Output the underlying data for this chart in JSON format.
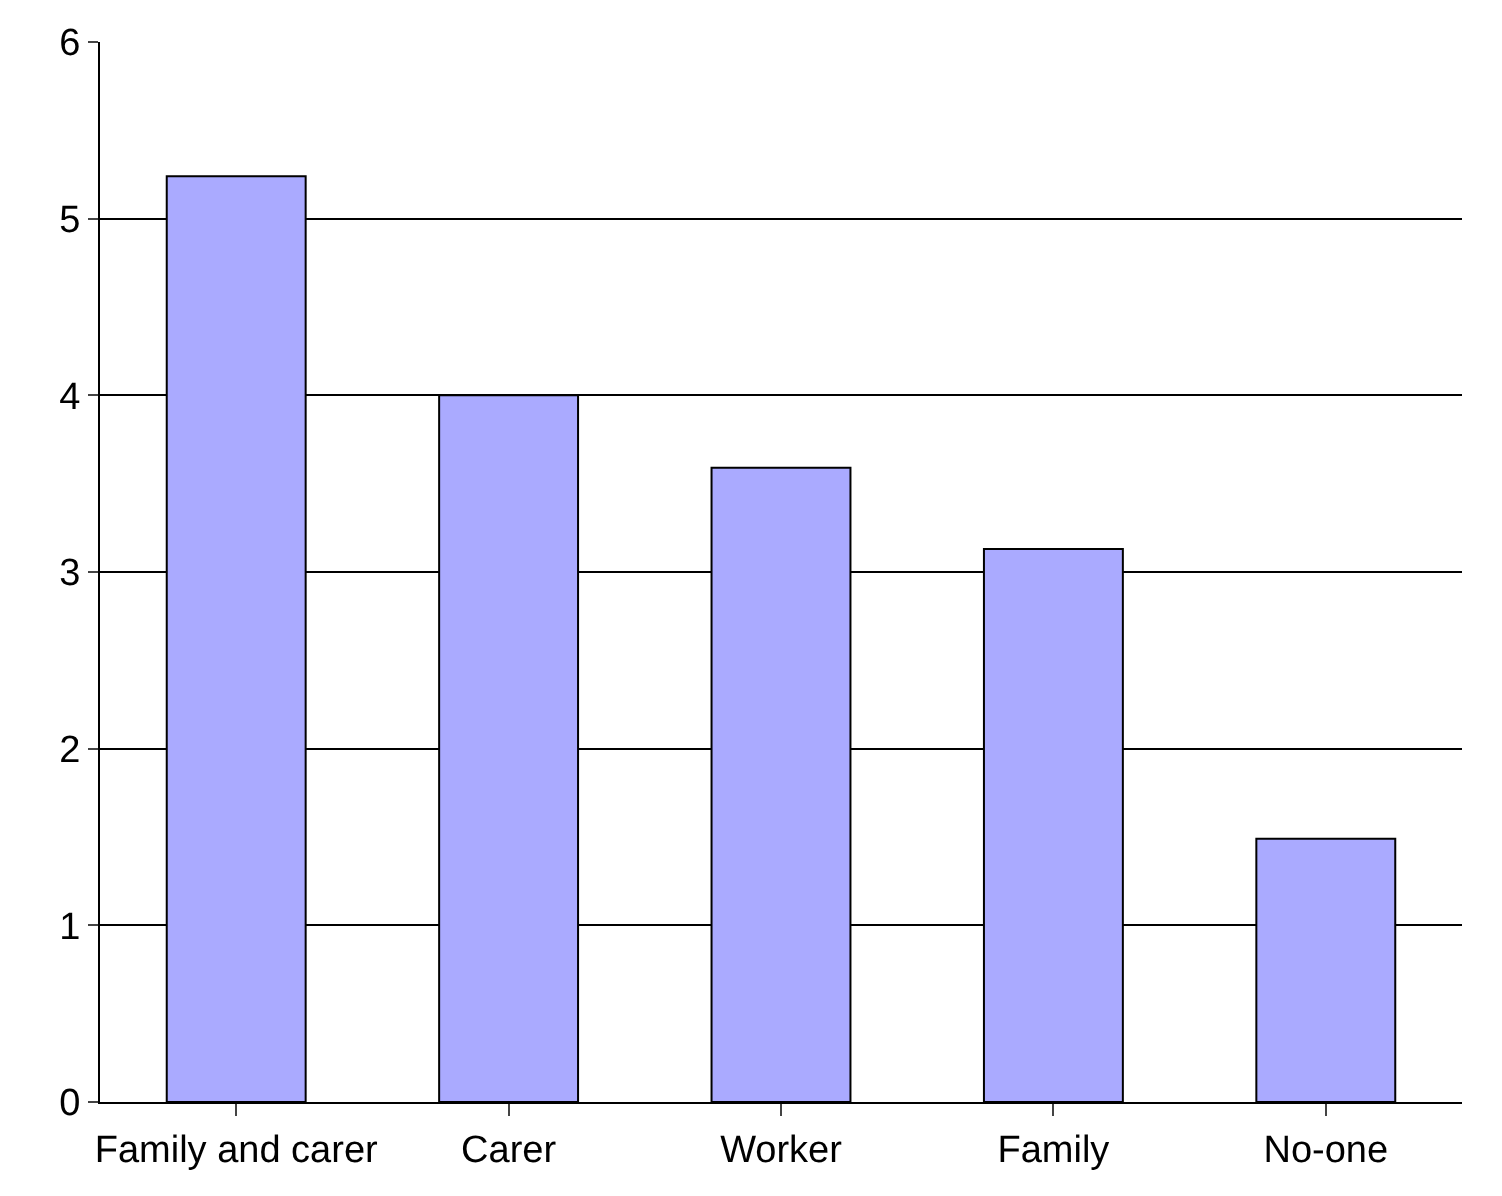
{
  "chart_data": {
    "type": "bar",
    "categories": [
      "Family and carer",
      "Carer",
      "Worker",
      "Family",
      "No-one"
    ],
    "values": [
      5.24,
      4.0,
      3.59,
      3.13,
      1.49
    ],
    "color": "#aaaaff",
    "ylim": [
      0,
      6
    ],
    "yticks": [
      0,
      1,
      2,
      3,
      4,
      5,
      6
    ],
    "grid": "y"
  }
}
